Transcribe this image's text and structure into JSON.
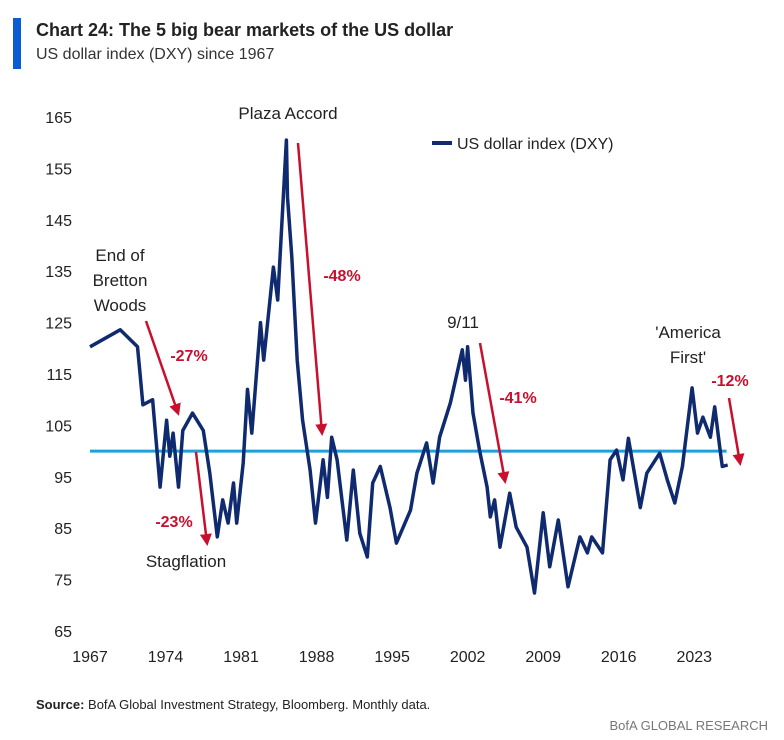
{
  "header": {
    "title": "Chart 24: The 5 big bear markets of the US dollar",
    "subtitle": "US dollar index (DXY) since 1967",
    "accent_color": "#0b5bd3"
  },
  "chart_data": {
    "type": "line",
    "title": "Chart 24: The 5 big bear markets of the US dollar",
    "subtitle": "US dollar index (DXY) since 1967",
    "xlabel": "",
    "ylabel": "",
    "xlim": [
      1967,
      2027
    ],
    "ylim": [
      65,
      165
    ],
    "x_ticks": [
      "1967",
      "1974",
      "1981",
      "1988",
      "1995",
      "2002",
      "2009",
      "2016",
      "2023"
    ],
    "y_ticks": [
      "165",
      "155",
      "145",
      "135",
      "125",
      "115",
      "105",
      "95",
      "85",
      "75",
      "65"
    ],
    "grid": false,
    "legend_position": "top-right",
    "reference_line": {
      "y": 100,
      "color": "#1ea0dc"
    },
    "series": [
      {
        "name": "US dollar index (DXY)",
        "color": "#0f2a6e",
        "x": [
          1967,
          1969.8,
          1971.4,
          1971.6,
          1971.9,
          1972.8,
          1973.5,
          1974.1,
          1974.4,
          1974.7,
          1975.2,
          1975.6,
          1976.5,
          1977.5,
          1978.1,
          1978.8,
          1979.3,
          1979.8,
          1980.3,
          1980.6,
          1981.2,
          1981.6,
          1982,
          1982.8,
          1983.1,
          1984,
          1984.4,
          1985.2,
          1985.3,
          1985.7,
          1986.2,
          1986.7,
          1987.4,
          1987.9,
          1988.6,
          1989,
          1989.4,
          1989.9,
          1990.8,
          1991.4,
          1992,
          1992.7,
          1993.2,
          1993.9,
          1994.8,
          1995.4,
          1996.7,
          1997.3,
          1998.2,
          1998.8,
          1999.4,
          2000.4,
          2001.5,
          2001.8,
          2002,
          2002.5,
          2003.1,
          2003.8,
          2004.1,
          2004.5,
          2005,
          2005.9,
          2006.5,
          2007.5,
          2008.2,
          2009,
          2009.6,
          2010.4,
          2011.3,
          2012.4,
          2013.1,
          2013.5,
          2014.5,
          2015.2,
          2015.8,
          2016.4,
          2016.9,
          2018,
          2018.6,
          2019.8,
          2020.5,
          2021.2,
          2021.9,
          2022.8,
          2023.3,
          2023.8,
          2024.5,
          2024.9,
          2025.4,
          2025.6,
          2026.1
        ],
        "values": [
          120.3,
          123.6,
          120.3,
          116,
          109,
          110,
          93,
          106,
          99,
          103.5,
          93,
          104,
          107.4,
          104,
          95.7,
          83.3,
          90.5,
          86,
          93.8,
          86,
          97.7,
          112,
          103.5,
          125,
          117.7,
          135.8,
          129.4,
          160.5,
          149.4,
          137.8,
          117.7,
          106,
          96.3,
          86,
          98.3,
          91,
          102.7,
          98.3,
          82.7,
          96.3,
          84,
          79.4,
          93.8,
          97,
          89,
          82.1,
          88.5,
          95.7,
          101.6,
          93.8,
          102.7,
          109.4,
          119.7,
          113.8,
          120.3,
          107.4,
          100.2,
          93,
          87.2,
          90.5,
          81.3,
          91.8,
          85.2,
          81.3,
          72.4,
          88,
          77.5,
          86.6,
          73.6,
          83.3,
          80.2,
          83.3,
          80.2,
          98.3,
          100.2,
          94.4,
          102.5,
          89,
          95.7,
          99.6,
          94.4,
          89.9,
          97,
          112.3,
          103.5,
          106.6,
          102.7,
          108.6,
          100.2,
          97,
          97.3
        ]
      }
    ],
    "annotations": [
      {
        "id": "bretton",
        "lines": [
          "End of",
          "Bretton",
          "Woods"
        ],
        "color": "#222222"
      },
      {
        "id": "pct27",
        "lines": [
          "-27%"
        ],
        "color": "#c8102e"
      },
      {
        "id": "pct23",
        "lines": [
          "-23%"
        ],
        "color": "#c8102e"
      },
      {
        "id": "stagflation",
        "lines": [
          "Stagflation"
        ],
        "color": "#222222"
      },
      {
        "id": "plaza",
        "lines": [
          "Plaza Accord"
        ],
        "color": "#222222"
      },
      {
        "id": "pct48",
        "lines": [
          "-48%"
        ],
        "color": "#c8102e"
      },
      {
        "id": "nineeleven",
        "lines": [
          "9/11"
        ],
        "color": "#222222"
      },
      {
        "id": "pct41",
        "lines": [
          "-41%"
        ],
        "color": "#c8102e"
      },
      {
        "id": "america",
        "lines": [
          "'America",
          "First'"
        ],
        "color": "#222222"
      },
      {
        "id": "pct12",
        "lines": [
          "-12%"
        ],
        "color": "#c8102e"
      }
    ],
    "arrow_color": "#c8102e"
  },
  "footer": {
    "source_label": "Source:",
    "source_text": " BofA Global Investment Strategy, Bloomberg. Monthly data.",
    "brand": "BofA GLOBAL RESEARCH"
  }
}
